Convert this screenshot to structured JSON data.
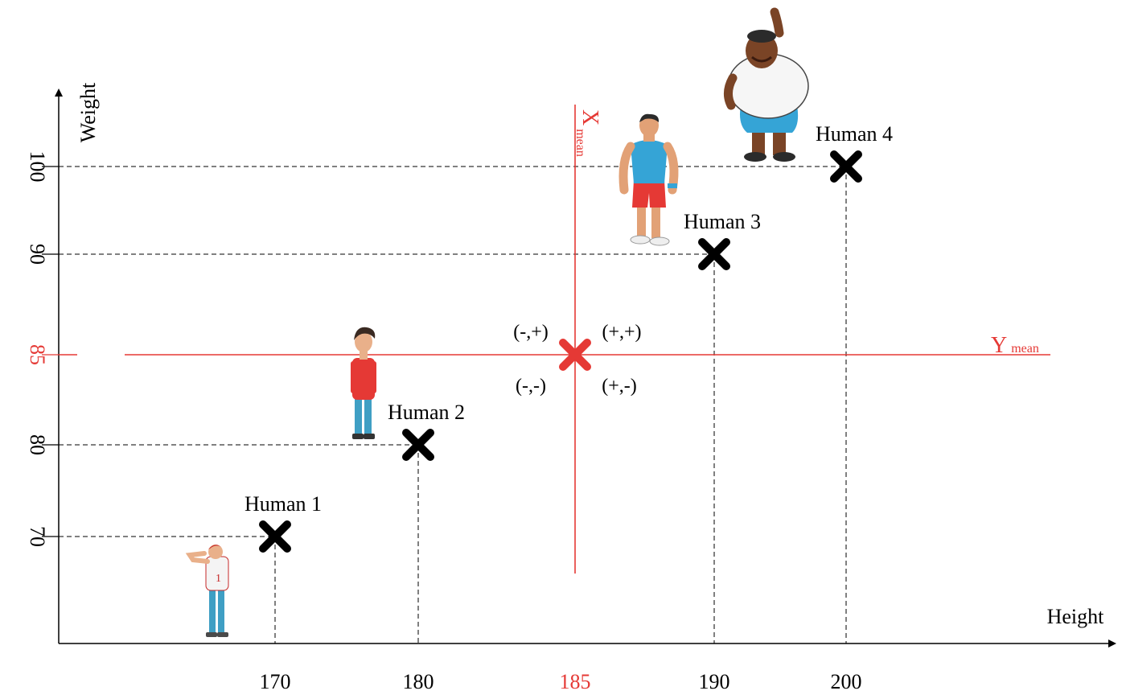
{
  "chart_data": {
    "type": "scatter",
    "xlabel": "Height",
    "ylabel": "Weight",
    "x_ticks": [
      {
        "value": 170,
        "label": "170"
      },
      {
        "value": 180,
        "label": "180"
      },
      {
        "value": 185,
        "label": "185",
        "highlight": true
      },
      {
        "value": 190,
        "label": "190"
      },
      {
        "value": 200,
        "label": "200"
      }
    ],
    "y_ticks": [
      {
        "value": 70,
        "label": "70"
      },
      {
        "value": 80,
        "label": "80"
      },
      {
        "value": 85,
        "label": "85",
        "highlight": true
      },
      {
        "value": 90,
        "label": "90"
      },
      {
        "value": 100,
        "label": "100"
      }
    ],
    "points": [
      {
        "name": "Human 1",
        "x": 170,
        "y": 70
      },
      {
        "name": "Human 2",
        "x": 180,
        "y": 80
      },
      {
        "name": "Human 3",
        "x": 190,
        "y": 90
      },
      {
        "name": "Human 4",
        "x": 200,
        "y": 100
      }
    ],
    "mean_point": {
      "x": 185,
      "y": 85
    },
    "x_mean_label": {
      "main": "X",
      "sub": "mean"
    },
    "y_mean_label": {
      "main": "Y",
      "sub": "mean"
    },
    "quadrants": {
      "top_left": "(-,+)",
      "top_right": "(+,+)",
      "bottom_left": "(-,-)",
      "bottom_right": "(+,-)"
    }
  },
  "colors": {
    "axis": "#000000",
    "point": "#000000",
    "mean": "#e53935",
    "shirt_red": "#e53935",
    "shirt_blue": "#35a4d6",
    "jeans": "#3f9fc4",
    "skin": "#e9b08a",
    "skin_dark": "#7a4426"
  },
  "icons": [
    "human-1-figure",
    "human-2-figure",
    "human-3-figure",
    "human-4-figure"
  ]
}
